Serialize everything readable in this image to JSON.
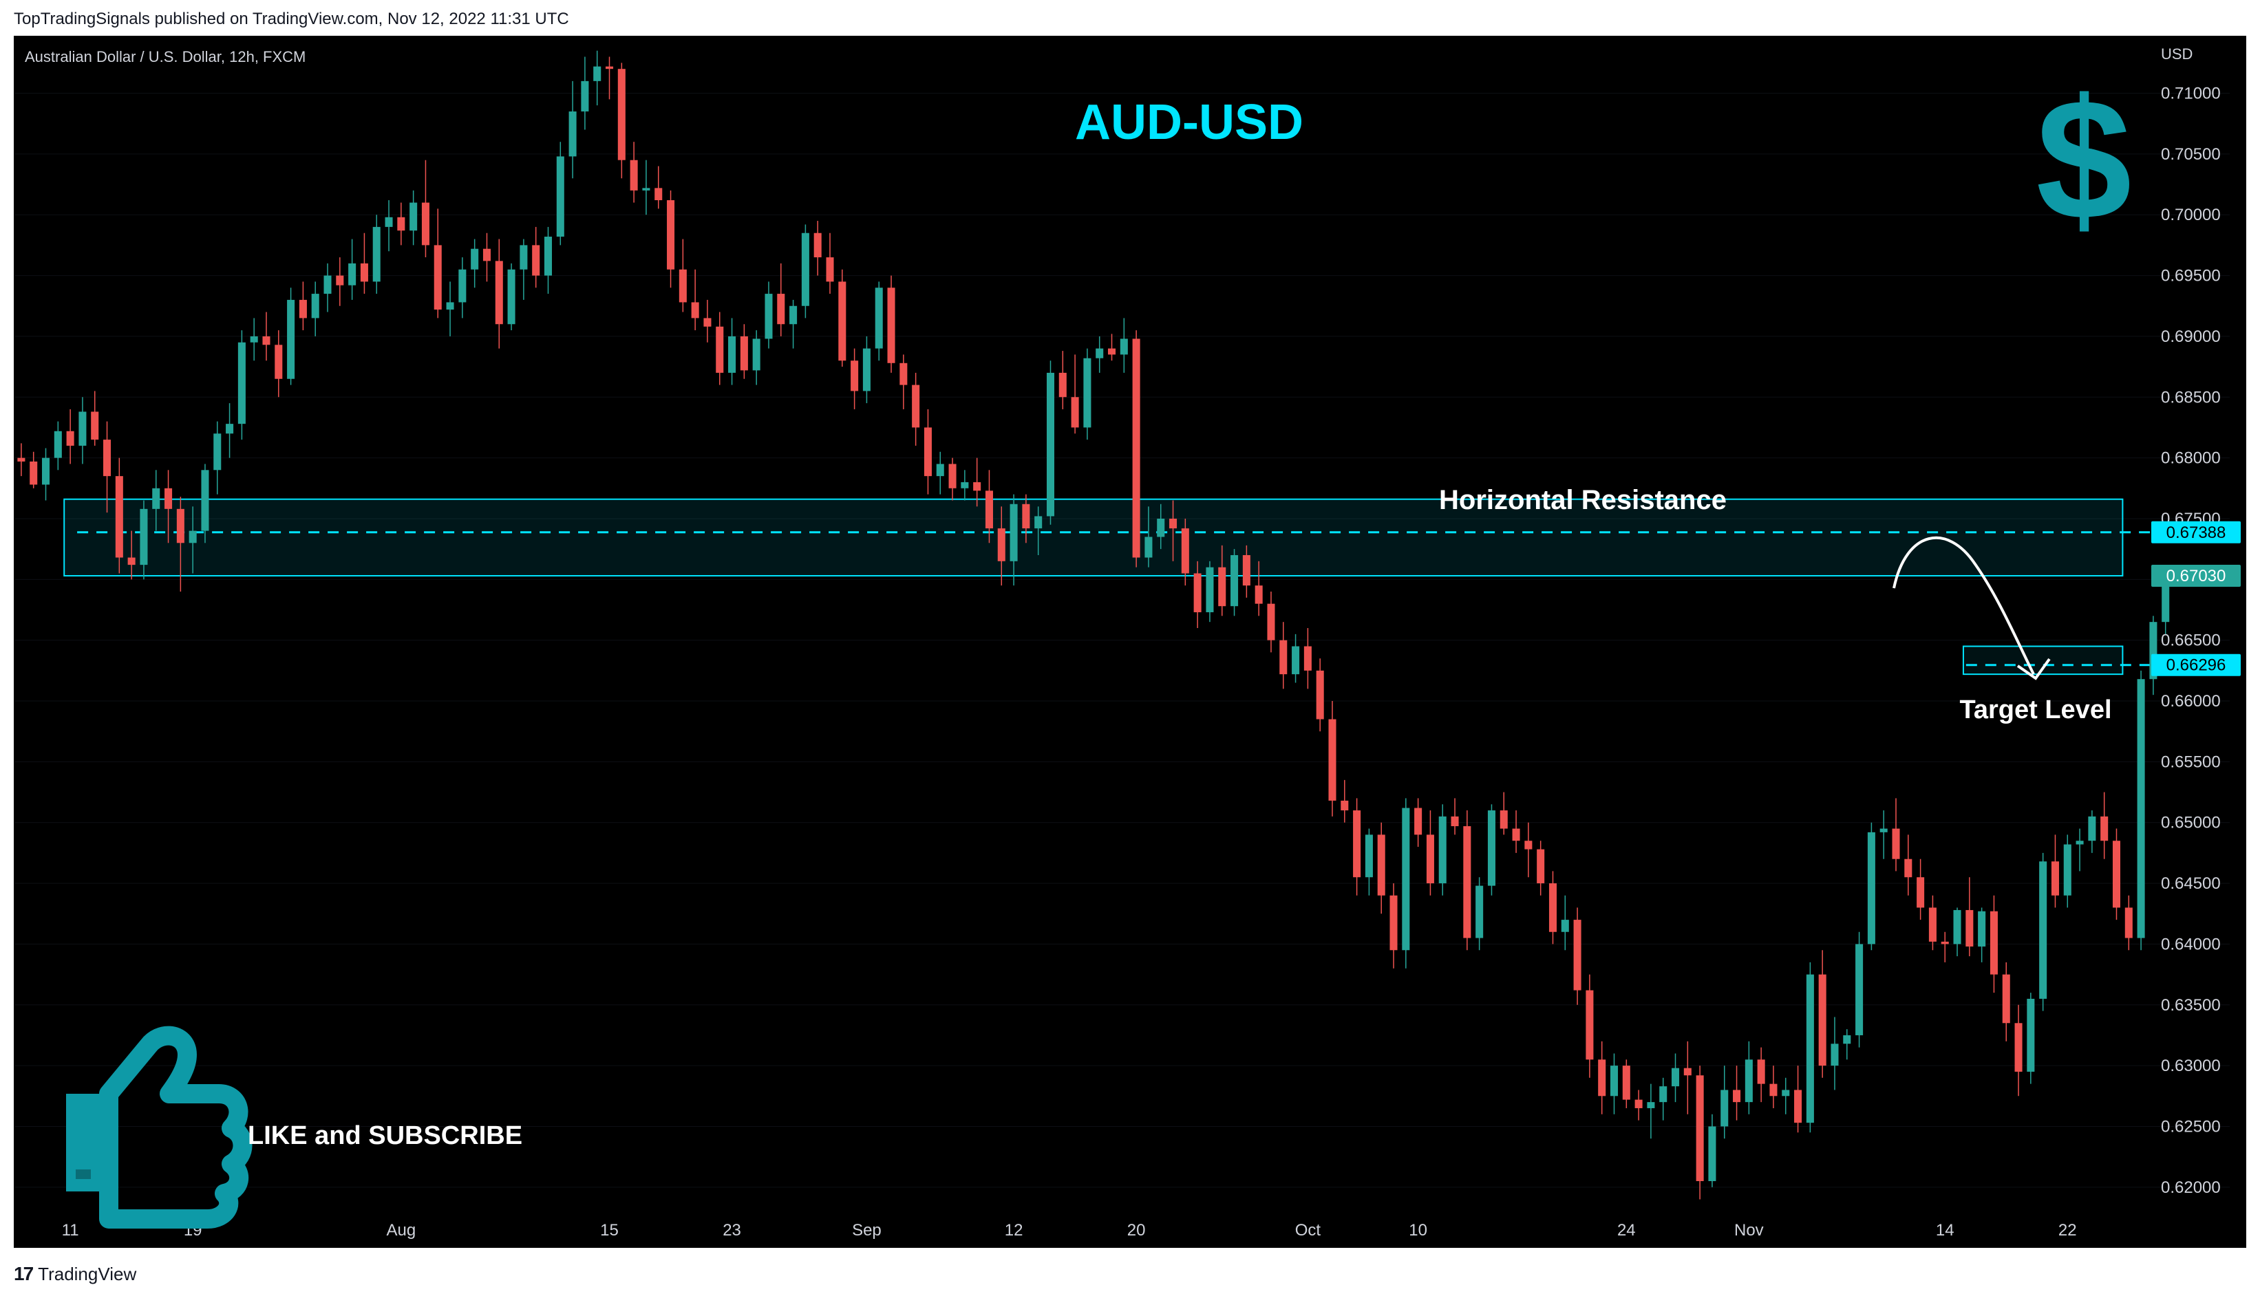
{
  "header": {
    "published_line": "TopTradingSignals published on TradingView.com, Nov 12, 2022 11:31 UTC"
  },
  "chart_header": {
    "symbol_line": "Australian Dollar / U.S. Dollar, 12h, FXCM"
  },
  "footer": {
    "brand": "TradingView",
    "logo_glyph": "17"
  },
  "overlay": {
    "title": "AUD-USD",
    "title_color": "#00e5ff",
    "dollar_glyph": "$",
    "accent_color": "#0e9aa7",
    "resistance_label": "Horizontal Resistance",
    "target_label": "Target Level",
    "cta_label": "LIKE and SUBSCRIBE"
  },
  "chart_data": {
    "type": "candlestick",
    "currency": "USD",
    "ylim": [
      0.6175,
      0.7145
    ],
    "y_ticks": [
      "0.71000",
      "0.70500",
      "0.70000",
      "0.69500",
      "0.69000",
      "0.68500",
      "0.68000",
      "0.67500",
      "0.67000",
      "0.66500",
      "0.66000",
      "0.65500",
      "0.65000",
      "0.64500",
      "0.64000",
      "0.63500",
      "0.63000",
      "0.62500",
      "0.62000"
    ],
    "x_ticks": [
      {
        "label": "11",
        "index": 4
      },
      {
        "label": "19",
        "index": 14
      },
      {
        "label": "Aug",
        "index": 31
      },
      {
        "label": "15",
        "index": 48
      },
      {
        "label": "23",
        "index": 58
      },
      {
        "label": "Sep",
        "index": 69
      },
      {
        "label": "12",
        "index": 81
      },
      {
        "label": "20",
        "index": 91
      },
      {
        "label": "Oct",
        "index": 105
      },
      {
        "label": "10",
        "index": 114
      },
      {
        "label": "24",
        "index": 131
      },
      {
        "label": "Nov",
        "index": 141
      },
      {
        "label": "14",
        "index": 157
      },
      {
        "label": "22",
        "index": 167
      }
    ],
    "total_slots": 174,
    "price_labels": [
      {
        "value": "0.67388",
        "color": "#00e5ff",
        "text_color": "#000000"
      },
      {
        "value": "0.67030",
        "color": "#26a69a",
        "text_color": "#ffffff"
      },
      {
        "value": "0.66296",
        "color": "#00e5ff",
        "text_color": "#000000"
      }
    ],
    "resistance_zone": {
      "from": 0.6703,
      "to": 0.6766,
      "level": 0.67388,
      "start_index": 4,
      "end_index": 172
    },
    "target_zone": {
      "from": 0.6622,
      "to": 0.6645,
      "level": 0.66296,
      "start_index": 159,
      "end_index": 172
    },
    "colors": {
      "up": "#26a69a",
      "down": "#ef5350",
      "zone": "#00e5ff"
    },
    "candles": [
      [
        0.68,
        0.6812,
        0.6785,
        0.6797
      ],
      [
        0.6797,
        0.6805,
        0.6775,
        0.6778
      ],
      [
        0.6778,
        0.6808,
        0.6765,
        0.68
      ],
      [
        0.68,
        0.683,
        0.679,
        0.6822
      ],
      [
        0.6822,
        0.684,
        0.6795,
        0.681
      ],
      [
        0.681,
        0.685,
        0.6795,
        0.6838
      ],
      [
        0.6838,
        0.6855,
        0.681,
        0.6815
      ],
      [
        0.6815,
        0.683,
        0.6755,
        0.6785
      ],
      [
        0.6785,
        0.68,
        0.6705,
        0.6718
      ],
      [
        0.6718,
        0.674,
        0.67,
        0.6712
      ],
      [
        0.6712,
        0.6765,
        0.67,
        0.6758
      ],
      [
        0.6758,
        0.679,
        0.674,
        0.6775
      ],
      [
        0.6775,
        0.679,
        0.673,
        0.6758
      ],
      [
        0.6758,
        0.6768,
        0.669,
        0.673
      ],
      [
        0.673,
        0.676,
        0.6705,
        0.674
      ],
      [
        0.674,
        0.6795,
        0.673,
        0.679
      ],
      [
        0.679,
        0.683,
        0.677,
        0.682
      ],
      [
        0.682,
        0.6845,
        0.68,
        0.6828
      ],
      [
        0.6828,
        0.6905,
        0.6815,
        0.6895
      ],
      [
        0.6895,
        0.6915,
        0.688,
        0.69
      ],
      [
        0.69,
        0.692,
        0.688,
        0.6893
      ],
      [
        0.6893,
        0.6905,
        0.685,
        0.6865
      ],
      [
        0.6865,
        0.694,
        0.686,
        0.693
      ],
      [
        0.693,
        0.6945,
        0.6905,
        0.6915
      ],
      [
        0.6915,
        0.6945,
        0.69,
        0.6935
      ],
      [
        0.6935,
        0.696,
        0.692,
        0.695
      ],
      [
        0.695,
        0.6965,
        0.6925,
        0.6942
      ],
      [
        0.6942,
        0.698,
        0.693,
        0.696
      ],
      [
        0.696,
        0.6985,
        0.6935,
        0.6945
      ],
      [
        0.6945,
        0.7,
        0.6935,
        0.699
      ],
      [
        0.699,
        0.7012,
        0.697,
        0.6998
      ],
      [
        0.6998,
        0.701,
        0.6975,
        0.6987
      ],
      [
        0.6987,
        0.702,
        0.6975,
        0.701
      ],
      [
        0.701,
        0.7045,
        0.6965,
        0.6975
      ],
      [
        0.6975,
        0.7005,
        0.6915,
        0.6922
      ],
      [
        0.6922,
        0.6945,
        0.69,
        0.6928
      ],
      [
        0.6928,
        0.6965,
        0.6915,
        0.6955
      ],
      [
        0.6955,
        0.698,
        0.694,
        0.6972
      ],
      [
        0.6972,
        0.6985,
        0.6945,
        0.6962
      ],
      [
        0.6962,
        0.698,
        0.689,
        0.691
      ],
      [
        0.691,
        0.696,
        0.6905,
        0.6955
      ],
      [
        0.6955,
        0.698,
        0.693,
        0.6975
      ],
      [
        0.6975,
        0.699,
        0.694,
        0.695
      ],
      [
        0.695,
        0.699,
        0.6935,
        0.6982
      ],
      [
        0.6982,
        0.706,
        0.6975,
        0.7048
      ],
      [
        0.7048,
        0.711,
        0.703,
        0.7085
      ],
      [
        0.7085,
        0.713,
        0.707,
        0.711
      ],
      [
        0.711,
        0.7135,
        0.709,
        0.7122
      ],
      [
        0.7122,
        0.713,
        0.7095,
        0.712
      ],
      [
        0.712,
        0.7125,
        0.703,
        0.7045
      ],
      [
        0.7045,
        0.706,
        0.701,
        0.702
      ],
      [
        0.702,
        0.7045,
        0.7,
        0.7022
      ],
      [
        0.7022,
        0.704,
        0.7005,
        0.7012
      ],
      [
        0.7012,
        0.702,
        0.694,
        0.6955
      ],
      [
        0.6955,
        0.698,
        0.692,
        0.6928
      ],
      [
        0.6928,
        0.6955,
        0.6905,
        0.6915
      ],
      [
        0.6915,
        0.693,
        0.6895,
        0.6908
      ],
      [
        0.6908,
        0.692,
        0.686,
        0.687
      ],
      [
        0.687,
        0.6915,
        0.686,
        0.69
      ],
      [
        0.69,
        0.691,
        0.6865,
        0.6872
      ],
      [
        0.6872,
        0.6905,
        0.686,
        0.6898
      ],
      [
        0.6898,
        0.6945,
        0.689,
        0.6935
      ],
      [
        0.6935,
        0.696,
        0.69,
        0.691
      ],
      [
        0.691,
        0.693,
        0.689,
        0.6925
      ],
      [
        0.6925,
        0.6992,
        0.6915,
        0.6985
      ],
      [
        0.6985,
        0.6995,
        0.695,
        0.6965
      ],
      [
        0.6965,
        0.6985,
        0.6935,
        0.6945
      ],
      [
        0.6945,
        0.6955,
        0.6875,
        0.688
      ],
      [
        0.688,
        0.689,
        0.684,
        0.6855
      ],
      [
        0.6855,
        0.69,
        0.6845,
        0.689
      ],
      [
        0.689,
        0.6945,
        0.688,
        0.694
      ],
      [
        0.694,
        0.695,
        0.687,
        0.6878
      ],
      [
        0.6878,
        0.6885,
        0.684,
        0.686
      ],
      [
        0.686,
        0.687,
        0.681,
        0.6825
      ],
      [
        0.6825,
        0.684,
        0.677,
        0.6785
      ],
      [
        0.6785,
        0.6805,
        0.677,
        0.6795
      ],
      [
        0.6795,
        0.68,
        0.6765,
        0.6775
      ],
      [
        0.6775,
        0.679,
        0.6765,
        0.678
      ],
      [
        0.678,
        0.68,
        0.676,
        0.6773
      ],
      [
        0.6773,
        0.679,
        0.673,
        0.6742
      ],
      [
        0.6742,
        0.676,
        0.6695,
        0.6715
      ],
      [
        0.6715,
        0.677,
        0.6695,
        0.6762
      ],
      [
        0.6762,
        0.677,
        0.673,
        0.6742
      ],
      [
        0.6742,
        0.676,
        0.672,
        0.6752
      ],
      [
        0.6752,
        0.688,
        0.6745,
        0.687
      ],
      [
        0.687,
        0.6888,
        0.684,
        0.685
      ],
      [
        0.685,
        0.6885,
        0.682,
        0.6825
      ],
      [
        0.6825,
        0.689,
        0.6815,
        0.6882
      ],
      [
        0.6882,
        0.69,
        0.687,
        0.689
      ],
      [
        0.689,
        0.6902,
        0.688,
        0.6885
      ],
      [
        0.6885,
        0.6915,
        0.687,
        0.6898
      ],
      [
        0.6898,
        0.6905,
        0.671,
        0.6718
      ],
      [
        0.6718,
        0.676,
        0.671,
        0.6735
      ],
      [
        0.6735,
        0.6762,
        0.6725,
        0.675
      ],
      [
        0.675,
        0.6765,
        0.6715,
        0.6742
      ],
      [
        0.6742,
        0.675,
        0.6695,
        0.6705
      ],
      [
        0.6705,
        0.6715,
        0.666,
        0.6673
      ],
      [
        0.6673,
        0.6715,
        0.6665,
        0.671
      ],
      [
        0.671,
        0.6728,
        0.667,
        0.6678
      ],
      [
        0.6678,
        0.6725,
        0.667,
        0.672
      ],
      [
        0.672,
        0.6728,
        0.6685,
        0.6695
      ],
      [
        0.6695,
        0.6715,
        0.667,
        0.668
      ],
      [
        0.668,
        0.669,
        0.664,
        0.665
      ],
      [
        0.665,
        0.6665,
        0.661,
        0.6622
      ],
      [
        0.6622,
        0.6655,
        0.6615,
        0.6645
      ],
      [
        0.6645,
        0.666,
        0.661,
        0.6625
      ],
      [
        0.6625,
        0.6635,
        0.6575,
        0.6585
      ],
      [
        0.6585,
        0.66,
        0.6505,
        0.6518
      ],
      [
        0.6518,
        0.6535,
        0.65,
        0.651
      ],
      [
        0.651,
        0.652,
        0.644,
        0.6455
      ],
      [
        0.6455,
        0.6495,
        0.644,
        0.649
      ],
      [
        0.649,
        0.65,
        0.6425,
        0.644
      ],
      [
        0.644,
        0.645,
        0.638,
        0.6395
      ],
      [
        0.6395,
        0.652,
        0.638,
        0.6512
      ],
      [
        0.6512,
        0.652,
        0.648,
        0.649
      ],
      [
        0.649,
        0.651,
        0.644,
        0.645
      ],
      [
        0.645,
        0.6515,
        0.644,
        0.6505
      ],
      [
        0.6505,
        0.652,
        0.649,
        0.6497
      ],
      [
        0.6497,
        0.651,
        0.6395,
        0.6405
      ],
      [
        0.6405,
        0.6455,
        0.6395,
        0.6448
      ],
      [
        0.6448,
        0.6515,
        0.644,
        0.651
      ],
      [
        0.651,
        0.6525,
        0.649,
        0.6495
      ],
      [
        0.6495,
        0.651,
        0.6475,
        0.6485
      ],
      [
        0.6485,
        0.65,
        0.6455,
        0.6478
      ],
      [
        0.6478,
        0.6485,
        0.644,
        0.645
      ],
      [
        0.645,
        0.646,
        0.64,
        0.641
      ],
      [
        0.641,
        0.644,
        0.6395,
        0.642
      ],
      [
        0.642,
        0.643,
        0.635,
        0.6362
      ],
      [
        0.6362,
        0.6375,
        0.629,
        0.6305
      ],
      [
        0.6305,
        0.632,
        0.626,
        0.6275
      ],
      [
        0.6275,
        0.631,
        0.626,
        0.63
      ],
      [
        0.63,
        0.6305,
        0.6265,
        0.6272
      ],
      [
        0.6272,
        0.628,
        0.6255,
        0.6265
      ],
      [
        0.6265,
        0.6285,
        0.624,
        0.627
      ],
      [
        0.627,
        0.629,
        0.6255,
        0.6283
      ],
      [
        0.6283,
        0.631,
        0.627,
        0.6298
      ],
      [
        0.6298,
        0.632,
        0.626,
        0.6292
      ],
      [
        0.6292,
        0.63,
        0.619,
        0.6205
      ],
      [
        0.6205,
        0.626,
        0.62,
        0.625
      ],
      [
        0.625,
        0.63,
        0.624,
        0.628
      ],
      [
        0.628,
        0.63,
        0.6255,
        0.627
      ],
      [
        0.627,
        0.632,
        0.626,
        0.6305
      ],
      [
        0.6305,
        0.6315,
        0.627,
        0.6285
      ],
      [
        0.6285,
        0.63,
        0.6265,
        0.6275
      ],
      [
        0.6275,
        0.629,
        0.626,
        0.628
      ],
      [
        0.628,
        0.63,
        0.6245,
        0.6253
      ],
      [
        0.6253,
        0.6385,
        0.6245,
        0.6375
      ],
      [
        0.6375,
        0.6395,
        0.629,
        0.63
      ],
      [
        0.63,
        0.634,
        0.628,
        0.6318
      ],
      [
        0.6318,
        0.633,
        0.6305,
        0.6325
      ],
      [
        0.6325,
        0.641,
        0.6315,
        0.64
      ],
      [
        0.64,
        0.65,
        0.6395,
        0.6492
      ],
      [
        0.6492,
        0.651,
        0.647,
        0.6495
      ],
      [
        0.6495,
        0.652,
        0.646,
        0.647
      ],
      [
        0.647,
        0.649,
        0.644,
        0.6455
      ],
      [
        0.6455,
        0.647,
        0.642,
        0.643
      ],
      [
        0.643,
        0.644,
        0.6395,
        0.6402
      ],
      [
        0.6402,
        0.641,
        0.6385,
        0.64
      ],
      [
        0.64,
        0.643,
        0.639,
        0.6428
      ],
      [
        0.6428,
        0.6455,
        0.639,
        0.6398
      ],
      [
        0.6398,
        0.643,
        0.6385,
        0.6427
      ],
      [
        0.6427,
        0.644,
        0.636,
        0.6375
      ],
      [
        0.6375,
        0.6385,
        0.632,
        0.6335
      ],
      [
        0.6335,
        0.635,
        0.6275,
        0.6295
      ],
      [
        0.6295,
        0.636,
        0.6285,
        0.6355
      ],
      [
        0.6355,
        0.6475,
        0.6345,
        0.6468
      ],
      [
        0.6468,
        0.649,
        0.643,
        0.644
      ],
      [
        0.644,
        0.649,
        0.643,
        0.6482
      ],
      [
        0.6482,
        0.6495,
        0.646,
        0.6485
      ],
      [
        0.6485,
        0.651,
        0.6475,
        0.6505
      ],
      [
        0.6505,
        0.6525,
        0.647,
        0.6485
      ],
      [
        0.6485,
        0.6495,
        0.642,
        0.643
      ],
      [
        0.643,
        0.644,
        0.6395,
        0.6405
      ],
      [
        0.6405,
        0.6625,
        0.6395,
        0.6618
      ],
      [
        0.6618,
        0.667,
        0.6605,
        0.6665
      ],
      [
        0.6665,
        0.671,
        0.6655,
        0.6703
      ]
    ]
  }
}
